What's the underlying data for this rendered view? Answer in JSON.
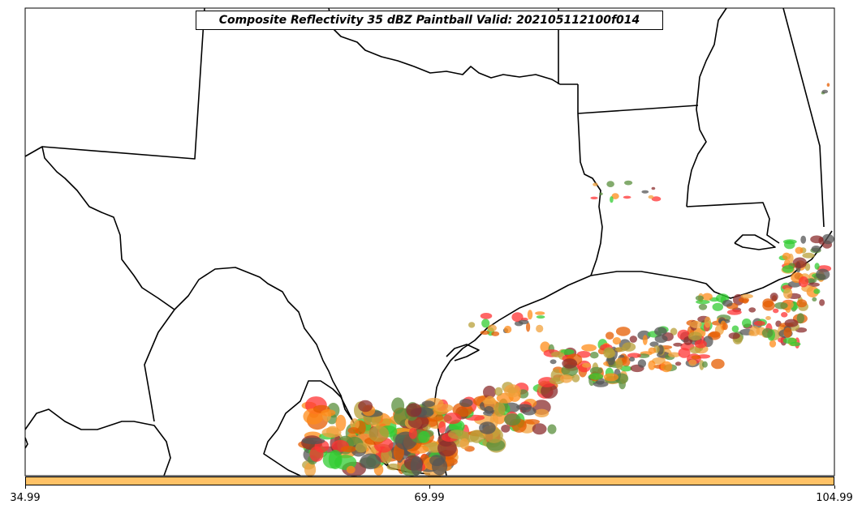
{
  "map": {
    "title": "Composite Reflectivity 35 dBZ Paintball Valid: 202105112100f014",
    "colors": {
      "land": "#ffffff",
      "boundary": "#000000",
      "paintball": [
        "#ff3333",
        "#e65c00",
        "#ff8c1a",
        "#f2a23c",
        "#33cc33",
        "#5a8f3c",
        "#b8a03a",
        "#8b2e2e",
        "#555555"
      ]
    }
  },
  "colorbar": {
    "fill_color": "#ffc266",
    "ticks": [
      "34.99",
      "69.99",
      "104.99"
    ]
  }
}
